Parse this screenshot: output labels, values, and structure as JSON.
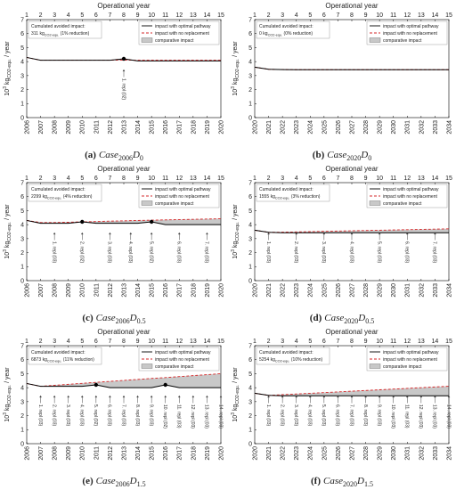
{
  "chart_data": [
    {
      "type": "line",
      "caption": {
        "label": "(a)",
        "main": "Case",
        "sub1": "2006",
        "mid": "D",
        "sub2": "0"
      },
      "x2label": "Operational year",
      "x2lim": [
        1,
        15
      ],
      "x2ticks": [
        1,
        2,
        3,
        4,
        5,
        6,
        7,
        8,
        9,
        10,
        11,
        12,
        13,
        14,
        15
      ],
      "ylabel": {
        "base": "10",
        "exp": "3",
        "unit": "kg",
        "unit_sub": "CO2-equ.",
        "per": "/ year"
      },
      "x": [
        2006,
        2007,
        2008,
        2009,
        2010,
        2011,
        2012,
        2013,
        2014,
        2015,
        2016,
        2017,
        2018,
        2019,
        2020
      ],
      "xlim": [
        2006,
        2020
      ],
      "xticks": [
        2006,
        2007,
        2008,
        2009,
        2010,
        2011,
        2012,
        2013,
        2014,
        2015,
        2016,
        2017,
        2018,
        2019,
        2020
      ],
      "ylim": [
        0,
        7
      ],
      "yticks": [
        0,
        1,
        2,
        3,
        4,
        5,
        6,
        7
      ],
      "series": [
        {
          "name": "impact with optimal pathway",
          "color": "#000000",
          "values": [
            4.3,
            4.1,
            4.1,
            4.1,
            4.1,
            4.1,
            4.1,
            4.2,
            4.05,
            4.05,
            4.05,
            4.05,
            4.05,
            4.05,
            4.05
          ]
        },
        {
          "name": "impact with no replacement",
          "color": "#d62728",
          "values": [
            4.3,
            4.1,
            4.1,
            4.1,
            4.1,
            4.1,
            4.1,
            4.1,
            4.1,
            4.1,
            4.1,
            4.1,
            4.1,
            4.1,
            4.1
          ]
        },
        {
          "name": "comparative impact",
          "color": "#c8c8c8"
        }
      ],
      "markers": [
        {
          "x": 2013,
          "y": 4.2
        }
      ],
      "avoided": {
        "title": "Cumulated avoided impact:",
        "value": 311,
        "unit": "kg",
        "unit_sub": "CO2-equ.",
        "note": "(1% reduction)"
      },
      "annotations": [
        {
          "x": 2013,
          "label": "1. repl (02)"
        }
      ],
      "legend": "upper right"
    },
    {
      "type": "line",
      "caption": {
        "label": "(b)",
        "main": "Case",
        "sub1": "2020",
        "mid": "D",
        "sub2": "0"
      },
      "x2label": "Operational year",
      "x2lim": [
        1,
        15
      ],
      "x2ticks": [
        1,
        2,
        3,
        4,
        5,
        6,
        7,
        8,
        9,
        10,
        11,
        12,
        13,
        14,
        15
      ],
      "ylabel": {
        "base": "10",
        "exp": "3",
        "unit": "kg",
        "unit_sub": "CO2-equ.",
        "per": "/ year"
      },
      "x": [
        2020,
        2021,
        2022,
        2023,
        2024,
        2025,
        2026,
        2027,
        2028,
        2029,
        2030,
        2031,
        2032,
        2033,
        2034
      ],
      "xlim": [
        2020,
        2034
      ],
      "xticks": [
        2020,
        2021,
        2022,
        2023,
        2024,
        2025,
        2026,
        2027,
        2028,
        2029,
        2030,
        2031,
        2032,
        2033,
        2034
      ],
      "ylim": [
        0,
        7
      ],
      "yticks": [
        0,
        1,
        2,
        3,
        4,
        5,
        6,
        7
      ],
      "series": [
        {
          "name": "impact with optimal pathway",
          "color": "#000000",
          "values": [
            3.6,
            3.45,
            3.43,
            3.42,
            3.42,
            3.42,
            3.42,
            3.42,
            3.42,
            3.42,
            3.42,
            3.42,
            3.42,
            3.42,
            3.42
          ]
        },
        {
          "name": "impact with no replacement",
          "color": "#d62728",
          "values": [
            3.6,
            3.45,
            3.43,
            3.42,
            3.42,
            3.42,
            3.42,
            3.42,
            3.42,
            3.42,
            3.42,
            3.42,
            3.42,
            3.42,
            3.42
          ]
        },
        {
          "name": "comparative impact",
          "color": "#c8c8c8"
        }
      ],
      "markers": [],
      "avoided": {
        "title": "Cumulated avoided impact:",
        "value": 0,
        "unit": "kg",
        "unit_sub": "CO2-equ.",
        "note": "(0% reduction)"
      },
      "annotations": [],
      "legend": "upper right"
    },
    {
      "type": "line",
      "caption": {
        "label": "(c)",
        "main": "Case",
        "sub1": "2006",
        "mid": "D",
        "sub2": "0.5"
      },
      "x2label": "Operational year",
      "x2lim": [
        1,
        15
      ],
      "x2ticks": [
        1,
        2,
        3,
        4,
        5,
        6,
        7,
        8,
        9,
        10,
        11,
        12,
        13,
        14,
        15
      ],
      "ylabel": {
        "base": "10",
        "exp": "3",
        "unit": "kg",
        "unit_sub": "CO2-equ.",
        "per": "/ year"
      },
      "x": [
        2006,
        2007,
        2008,
        2009,
        2010,
        2011,
        2012,
        2013,
        2014,
        2015,
        2016,
        2017,
        2018,
        2019,
        2020
      ],
      "xlim": [
        2006,
        2020
      ],
      "xticks": [
        2006,
        2007,
        2008,
        2009,
        2010,
        2011,
        2012,
        2013,
        2014,
        2015,
        2016,
        2017,
        2018,
        2019,
        2020
      ],
      "ylim": [
        0,
        7
      ],
      "yticks": [
        0,
        1,
        2,
        3,
        4,
        5,
        6,
        7
      ],
      "series": [
        {
          "name": "impact with optimal pathway",
          "color": "#000000",
          "values": [
            4.3,
            4.1,
            4.1,
            4.1,
            4.2,
            4.1,
            4.1,
            4.1,
            4.1,
            4.2,
            4.0,
            4.0,
            4.0,
            4.0,
            4.0
          ]
        },
        {
          "name": "impact with no replacement",
          "color": "#d62728",
          "values": [
            4.3,
            4.15,
            4.15,
            4.17,
            4.2,
            4.22,
            4.25,
            4.27,
            4.3,
            4.32,
            4.34,
            4.36,
            4.38,
            4.4,
            4.42
          ]
        },
        {
          "name": "comparative impact",
          "color": "#c8c8c8"
        }
      ],
      "markers": [
        {
          "x": 2010,
          "y": 4.2
        },
        {
          "x": 2015,
          "y": 4.2
        }
      ],
      "avoided": {
        "title": "Cumulated avoided impact:",
        "value": 2299,
        "unit": "kg",
        "unit_sub": "CO2-equ.",
        "note": "(4% reduction)"
      },
      "annotations": [
        {
          "x": 2008,
          "label": "1. repl (03)"
        },
        {
          "x": 2010,
          "label": "2. repl (02)"
        },
        {
          "x": 2012,
          "label": "3. repl (03)"
        },
        {
          "x": 2013.5,
          "label": "4. repl (03)"
        },
        {
          "x": 2015,
          "label": "5. repl (02)"
        },
        {
          "x": 2017,
          "label": "6. repl (03)"
        },
        {
          "x": 2019,
          "label": "7. repl (03)"
        }
      ],
      "legend": "upper right"
    },
    {
      "type": "line",
      "caption": {
        "label": "(d)",
        "main": "Case",
        "sub1": "2020",
        "mid": "D",
        "sub2": "0.5"
      },
      "x2label": "Operational year",
      "x2lim": [
        1,
        15
      ],
      "x2ticks": [
        1,
        2,
        3,
        4,
        5,
        6,
        7,
        8,
        9,
        10,
        11,
        12,
        13,
        14,
        15
      ],
      "ylabel": {
        "base": "10",
        "exp": "3",
        "unit": "kg",
        "unit_sub": "CO2-equ.",
        "per": "/ year"
      },
      "x": [
        2020,
        2021,
        2022,
        2023,
        2024,
        2025,
        2026,
        2027,
        2028,
        2029,
        2030,
        2031,
        2032,
        2033,
        2034
      ],
      "xlim": [
        2020,
        2034
      ],
      "xticks": [
        2020,
        2021,
        2022,
        2023,
        2024,
        2025,
        2026,
        2027,
        2028,
        2029,
        2030,
        2031,
        2032,
        2033,
        2034
      ],
      "ylim": [
        0,
        7
      ],
      "yticks": [
        0,
        1,
        2,
        3,
        4,
        5,
        6,
        7
      ],
      "series": [
        {
          "name": "impact with optimal pathway",
          "color": "#000000",
          "values": [
            3.6,
            3.45,
            3.42,
            3.42,
            3.42,
            3.42,
            3.42,
            3.42,
            3.42,
            3.42,
            3.42,
            3.42,
            3.42,
            3.42,
            3.42
          ]
        },
        {
          "name": "impact with no replacement",
          "color": "#d62728",
          "values": [
            3.6,
            3.45,
            3.46,
            3.48,
            3.5,
            3.52,
            3.54,
            3.56,
            3.58,
            3.6,
            3.62,
            3.64,
            3.66,
            3.68,
            3.7
          ]
        },
        {
          "name": "comparative impact",
          "color": "#c8c8c8"
        }
      ],
      "markers": [],
      "avoided": {
        "title": "Cumulated avoided impact:",
        "value": 1555,
        "unit": "kg",
        "unit_sub": "CO2-equ.",
        "note": "(3% reduction)"
      },
      "annotations": [
        {
          "x": 2021,
          "label": "1. repl (03)"
        },
        {
          "x": 2023,
          "label": "2. repl (03)"
        },
        {
          "x": 2025,
          "label": "3. repl (03)"
        },
        {
          "x": 2027,
          "label": "4. repl (03)"
        },
        {
          "x": 2029,
          "label": "5. repl (03)"
        },
        {
          "x": 2031,
          "label": "6. repl (03)"
        },
        {
          "x": 2033,
          "label": "7. repl (03)"
        }
      ],
      "legend": "upper right"
    },
    {
      "type": "line",
      "caption": {
        "label": "(e)",
        "main": "Case",
        "sub1": "2006",
        "mid": "D",
        "sub2": "1.5"
      },
      "x2label": "Operational year",
      "x2lim": [
        1,
        15
      ],
      "x2ticks": [
        1,
        2,
        3,
        4,
        5,
        6,
        7,
        8,
        9,
        10,
        11,
        12,
        13,
        14,
        15
      ],
      "ylabel": {
        "base": "10",
        "exp": "3",
        "unit": "kg",
        "unit_sub": "CO2-equ.",
        "per": "/ year"
      },
      "x": [
        2006,
        2007,
        2008,
        2009,
        2010,
        2011,
        2012,
        2013,
        2014,
        2015,
        2016,
        2017,
        2018,
        2019,
        2020
      ],
      "xlim": [
        2006,
        2020
      ],
      "xticks": [
        2006,
        2007,
        2008,
        2009,
        2010,
        2011,
        2012,
        2013,
        2014,
        2015,
        2016,
        2017,
        2018,
        2019,
        2020
      ],
      "ylim": [
        0,
        7
      ],
      "yticks": [
        0,
        1,
        2,
        3,
        4,
        5,
        6,
        7
      ],
      "series": [
        {
          "name": "impact with optimal pathway",
          "color": "#000000",
          "values": [
            4.3,
            4.1,
            4.1,
            4.1,
            4.1,
            4.2,
            4.0,
            4.0,
            4.0,
            4.0,
            4.2,
            4.0,
            4.0,
            4.0,
            4.0
          ]
        },
        {
          "name": "impact with no replacement",
          "color": "#d62728",
          "values": [
            4.3,
            4.1,
            4.17,
            4.24,
            4.31,
            4.38,
            4.45,
            4.52,
            4.59,
            4.66,
            4.72,
            4.79,
            4.86,
            4.93,
            5.0
          ]
        },
        {
          "name": "comparative impact",
          "color": "#c8c8c8"
        }
      ],
      "markers": [
        {
          "x": 2011,
          "y": 4.2
        },
        {
          "x": 2016,
          "y": 4.2
        }
      ],
      "avoided": {
        "title": "Cumulated avoided impact:",
        "value": 6873,
        "unit": "kg",
        "unit_sub": "CO2-equ.",
        "note": "(11% reduction)"
      },
      "annotations": [
        {
          "x": 2007,
          "label": "1. repl (03)"
        },
        {
          "x": 2008,
          "label": "2. repl (03)"
        },
        {
          "x": 2009,
          "label": "3. repl (03)"
        },
        {
          "x": 2010,
          "label": "4. repl (03)"
        },
        {
          "x": 2011,
          "label": "5. repl (02)"
        },
        {
          "x": 2012,
          "label": "6. repl (03)"
        },
        {
          "x": 2013,
          "label": "7. repl (03)"
        },
        {
          "x": 2014,
          "label": "8. repl (03)"
        },
        {
          "x": 2015,
          "label": "9. repl (03)"
        },
        {
          "x": 2016,
          "label": "10. repl (02)"
        },
        {
          "x": 2017,
          "label": "11. repl (03)"
        },
        {
          "x": 2018,
          "label": "12. repl (03)"
        },
        {
          "x": 2019,
          "label": "13. repl (03)"
        },
        {
          "x": 2020,
          "label": "14. repl (03)"
        }
      ],
      "legend": "upper right"
    },
    {
      "type": "line",
      "caption": {
        "label": "(f)",
        "main": "Case",
        "sub1": "2020",
        "mid": "D",
        "sub2": "1.5"
      },
      "x2label": "Operational year",
      "x2lim": [
        1,
        15
      ],
      "x2ticks": [
        1,
        2,
        3,
        4,
        5,
        6,
        7,
        8,
        9,
        10,
        11,
        12,
        13,
        14,
        15
      ],
      "ylabel": {
        "base": "10",
        "exp": "3",
        "unit": "kg",
        "unit_sub": "CO2-equ.",
        "per": "/ year"
      },
      "x": [
        2020,
        2021,
        2022,
        2023,
        2024,
        2025,
        2026,
        2027,
        2028,
        2029,
        2030,
        2031,
        2032,
        2033,
        2034
      ],
      "xlim": [
        2020,
        2034
      ],
      "xticks": [
        2020,
        2021,
        2022,
        2023,
        2024,
        2025,
        2026,
        2027,
        2028,
        2029,
        2030,
        2031,
        2032,
        2033,
        2034
      ],
      "ylim": [
        0,
        7
      ],
      "yticks": [
        0,
        1,
        2,
        3,
        4,
        5,
        6,
        7
      ],
      "series": [
        {
          "name": "impact with optimal pathway",
          "color": "#000000",
          "values": [
            3.6,
            3.45,
            3.42,
            3.42,
            3.42,
            3.42,
            3.42,
            3.42,
            3.42,
            3.42,
            3.42,
            3.42,
            3.42,
            3.42,
            3.42
          ]
        },
        {
          "name": "impact with no replacement",
          "color": "#d62728",
          "values": [
            3.6,
            3.45,
            3.5,
            3.55,
            3.6,
            3.65,
            3.7,
            3.75,
            3.8,
            3.85,
            3.9,
            3.95,
            4.0,
            4.05,
            4.1
          ]
        },
        {
          "name": "comparative impact",
          "color": "#c8c8c8"
        }
      ],
      "markers": [],
      "avoided": {
        "title": "Cumulated avoided impact:",
        "value": 5254,
        "unit": "kg",
        "unit_sub": "CO2-equ.",
        "note": "(10% reduction)"
      },
      "annotations": [
        {
          "x": 2021,
          "label": "1. repl (03)"
        },
        {
          "x": 2022,
          "label": "2. repl (03)"
        },
        {
          "x": 2023,
          "label": "3. repl (03)"
        },
        {
          "x": 2024,
          "label": "4. repl (03)"
        },
        {
          "x": 2025,
          "label": "5. repl (03)"
        },
        {
          "x": 2026,
          "label": "6. repl (03)"
        },
        {
          "x": 2027,
          "label": "7. repl (03)"
        },
        {
          "x": 2028,
          "label": "8. repl (03)"
        },
        {
          "x": 2029,
          "label": "9. repl (03)"
        },
        {
          "x": 2030,
          "label": "10. repl (03)"
        },
        {
          "x": 2031,
          "label": "11. repl (03)"
        },
        {
          "x": 2032,
          "label": "12. repl (03)"
        },
        {
          "x": 2033,
          "label": "13. repl (03)"
        },
        {
          "x": 2034,
          "label": "14. repl (03)"
        }
      ],
      "legend": "upper right"
    }
  ]
}
